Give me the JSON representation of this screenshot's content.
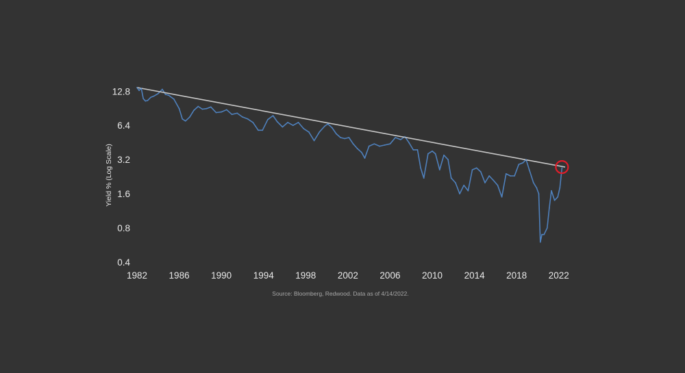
{
  "chart_data": {
    "type": "line",
    "title": "",
    "xlabel": "",
    "ylabel": "Yield % (Log Scale)",
    "yscale": "log",
    "xlim": [
      1982,
      2022.6
    ],
    "ylim": [
      0.4,
      16.5
    ],
    "x_ticks": [
      1982,
      1986,
      1990,
      1994,
      1998,
      2002,
      2006,
      2010,
      2014,
      2018,
      2022
    ],
    "y_ticks": [
      0.4,
      0.8,
      1.6,
      3.2,
      6.4,
      12.8
    ],
    "y_tick_labels": [
      "0.4",
      "0.8",
      "1.6",
      "3.2",
      "6.4",
      "12.8"
    ],
    "series": [
      {
        "name": "Yield",
        "color": "#4f81bd",
        "x": [
          1982.0,
          1982.2,
          1982.4,
          1982.6,
          1982.8,
          1983.0,
          1983.3,
          1983.6,
          1984.0,
          1984.4,
          1984.7,
          1985.0,
          1985.5,
          1986.0,
          1986.3,
          1986.6,
          1987.0,
          1987.4,
          1987.8,
          1988.2,
          1988.6,
          1989.0,
          1989.5,
          1990.0,
          1990.5,
          1991.0,
          1991.5,
          1992.0,
          1992.5,
          1993.0,
          1993.5,
          1993.9,
          1994.4,
          1994.9,
          1995.3,
          1995.8,
          1996.3,
          1996.8,
          1997.3,
          1997.8,
          1998.3,
          1998.8,
          1999.3,
          1999.8,
          2000.1,
          2000.5,
          2000.9,
          2001.3,
          2001.7,
          2002.1,
          2002.5,
          2002.9,
          2003.3,
          2003.6,
          2004.0,
          2004.5,
          2005.0,
          2005.5,
          2006.0,
          2006.5,
          2007.0,
          2007.4,
          2007.8,
          2008.2,
          2008.6,
          2008.9,
          2009.2,
          2009.6,
          2010.0,
          2010.3,
          2010.7,
          2011.1,
          2011.5,
          2011.8,
          2012.2,
          2012.6,
          2013.0,
          2013.4,
          2013.8,
          2014.2,
          2014.6,
          2015.0,
          2015.4,
          2015.8,
          2016.2,
          2016.6,
          2017.0,
          2017.4,
          2017.8,
          2018.2,
          2018.6,
          2018.9,
          2019.2,
          2019.6,
          2019.9,
          2020.1,
          2020.25,
          2020.4,
          2020.6,
          2020.9,
          2021.1,
          2021.3,
          2021.6,
          2021.9,
          2022.1,
          2022.3
        ],
        "values": [
          13.8,
          13.0,
          13.6,
          11.0,
          10.5,
          10.6,
          11.3,
          11.6,
          12.2,
          13.3,
          12.0,
          11.8,
          10.9,
          9.0,
          7.3,
          7.0,
          7.6,
          8.7,
          9.4,
          8.9,
          9.0,
          9.3,
          8.3,
          8.4,
          8.8,
          8.0,
          8.2,
          7.6,
          7.3,
          6.8,
          5.8,
          5.8,
          7.2,
          7.8,
          6.9,
          6.2,
          6.8,
          6.4,
          6.8,
          6.0,
          5.6,
          4.7,
          5.6,
          6.3,
          6.6,
          6.1,
          5.4,
          5.0,
          4.9,
          5.0,
          4.4,
          4.0,
          3.7,
          3.3,
          4.2,
          4.4,
          4.2,
          4.3,
          4.4,
          5.0,
          4.8,
          5.1,
          4.5,
          3.9,
          3.9,
          2.7,
          2.2,
          3.6,
          3.8,
          3.6,
          2.6,
          3.5,
          3.2,
          2.2,
          2.0,
          1.6,
          1.9,
          1.7,
          2.6,
          2.7,
          2.5,
          2.0,
          2.3,
          2.1,
          1.9,
          1.5,
          2.4,
          2.3,
          2.3,
          2.9,
          3.0,
          3.2,
          2.6,
          2.0,
          1.8,
          1.6,
          0.6,
          0.7,
          0.7,
          0.8,
          1.2,
          1.7,
          1.4,
          1.5,
          1.8,
          2.7
        ]
      },
      {
        "name": "Trend line",
        "color": "#c9c9c9",
        "x": [
          1982.0,
          2022.6
        ],
        "values": [
          13.8,
          2.75
        ]
      }
    ],
    "annotations": [
      {
        "type": "circle",
        "x": 2022.3,
        "value": 2.75,
        "color": "#e11d2a"
      }
    ],
    "source": "Source: Bloomberg, Redwood. Data as of 4/14/2022."
  }
}
